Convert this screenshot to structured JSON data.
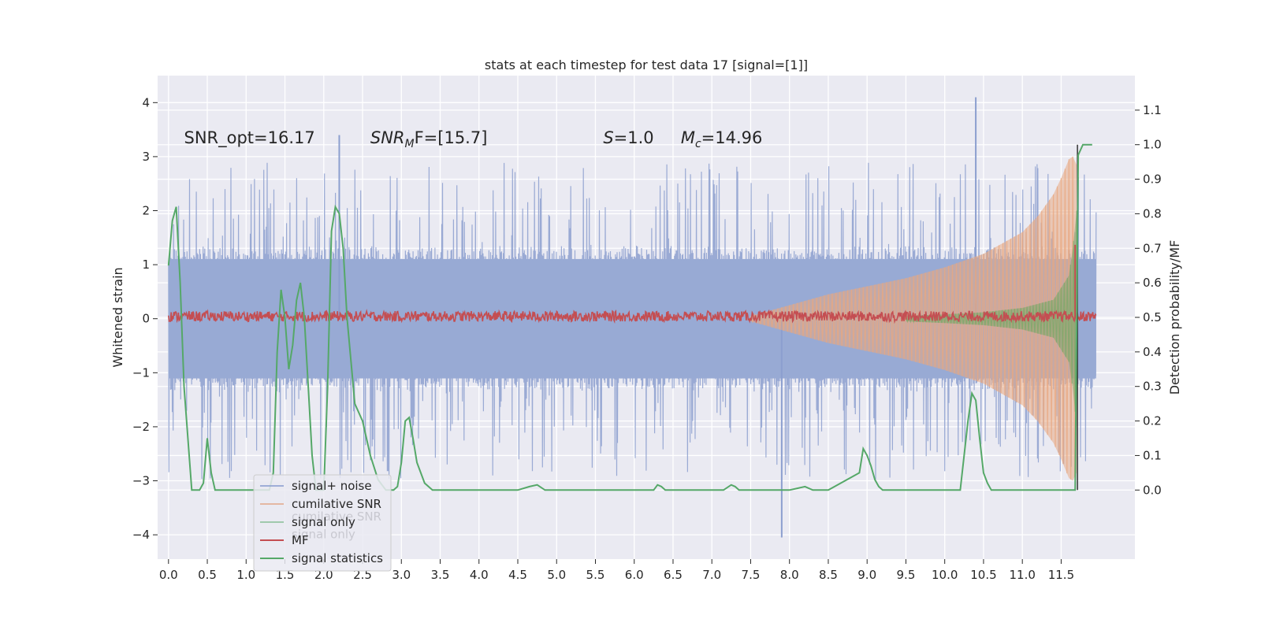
{
  "chart_data": {
    "type": "line",
    "title": "stats at each timestep for test data 17 [signal=[1]]",
    "xlabel": "",
    "ylabel": "Whitened strain",
    "y2label": "Detection probability/MF",
    "xlim": [
      -0.14,
      12.45
    ],
    "ylim": [
      -4.45,
      4.5
    ],
    "y2lim": [
      -0.2,
      1.2
    ],
    "xticks": [
      0.0,
      0.5,
      1.0,
      1.5,
      2.0,
      2.5,
      3.0,
      3.5,
      4.0,
      4.5,
      5.0,
      5.5,
      6.0,
      6.5,
      7.0,
      7.5,
      8.0,
      8.5,
      9.0,
      9.5,
      10.0,
      10.5,
      11.0,
      11.5
    ],
    "xtick_labels": [
      "0.0",
      "0.5",
      "1.0",
      "1.5",
      "2.0",
      "2.5",
      "3.0",
      "3.5",
      "4.0",
      "4.5",
      "5.0",
      "5.5",
      "6.0",
      "6.5",
      "7.0",
      "7.5",
      "8.0",
      "8.5",
      "9.0",
      "9.5",
      "10.0",
      "10.5",
      "11.0",
      "11.5"
    ],
    "yticks": [
      -4,
      -3,
      -2,
      -1,
      0,
      1,
      2,
      3,
      4
    ],
    "ytick_labels": [
      "−4",
      "−3",
      "−2",
      "−1",
      "0",
      "1",
      "2",
      "3",
      "4"
    ],
    "y2ticks": [
      0.0,
      0.1,
      0.2,
      0.3,
      0.4,
      0.5,
      0.6,
      0.7,
      0.8,
      0.9,
      1.0,
      1.1
    ],
    "y2tick_labels": [
      "0.0",
      "0.1",
      "0.2",
      "0.3",
      "0.4",
      "0.5",
      "0.6",
      "0.7",
      "0.8",
      "0.9",
      "1.0",
      "1.1"
    ],
    "grid": true,
    "legend_position": "lower-left",
    "annotations": [
      {
        "id": "snr-opt",
        "text": "SNR_opt=16.17",
        "x": 0.2,
        "y": 3.25
      },
      {
        "id": "snr-mf",
        "text": "SNR_MF=[15.7]",
        "x": 2.6,
        "y": 3.25
      },
      {
        "id": "s-value",
        "text": "S=1.0",
        "x": 5.6,
        "y": 3.25
      },
      {
        "id": "mc-value",
        "text": "M_c=14.96",
        "x": 6.6,
        "y": 3.25
      }
    ],
    "legend": [
      {
        "name": "signal+ noise",
        "color": "#8c9fcf",
        "alpha": 0.8
      },
      {
        "name": "cumilative SNR",
        "color": "#dd8452",
        "alpha": 0.5
      },
      {
        "name": "signal only",
        "color": "#55a868",
        "alpha": 0.5
      },
      {
        "name": "MF",
        "color": "#c44e52",
        "alpha": 1
      },
      {
        "name": "signal statistics",
        "color": "#55a868",
        "alpha": 1
      }
    ],
    "legend_ghost": [
      {
        "name": "cumilative SNR",
        "y": -3.66
      },
      {
        "name": "signal only",
        "y": -3.99
      }
    ],
    "noise": {
      "x_start": 0.0,
      "x_end": 11.95,
      "band": 1.3,
      "extreme_max": 4.1,
      "extreme_min": -4.05
    },
    "cumulative_snr_envelope": {
      "x": [
        7.5,
        8.0,
        8.5,
        9.0,
        9.5,
        10.0,
        10.5,
        11.0,
        11.2,
        11.4,
        11.5,
        11.6,
        11.65,
        11.7
      ],
      "upper": [
        0.05,
        0.25,
        0.45,
        0.6,
        0.75,
        0.95,
        1.2,
        1.6,
        1.9,
        2.3,
        2.6,
        2.95,
        3.0,
        2.85
      ]
    },
    "signal_only_envelope": {
      "x": [
        9.5,
        10.0,
        10.5,
        11.0,
        11.4,
        11.6,
        11.65,
        11.7
      ],
      "upper": [
        0.05,
        0.08,
        0.12,
        0.2,
        0.35,
        0.8,
        1.3,
        2.0
      ]
    },
    "mf": {
      "x_start": 0.0,
      "x_end": 11.95,
      "level": 0.5,
      "spike_x": 11.68,
      "spike_y": 0.71
    },
    "signal_statistics": {
      "x": [
        0.0,
        0.05,
        0.1,
        0.15,
        0.2,
        0.3,
        0.4,
        0.45,
        0.5,
        0.55,
        0.6,
        0.7,
        0.8,
        0.9,
        1.0,
        1.1,
        1.2,
        1.3,
        1.35,
        1.4,
        1.45,
        1.5,
        1.55,
        1.6,
        1.65,
        1.7,
        1.75,
        1.8,
        1.85,
        1.9,
        1.95,
        2.0,
        2.05,
        2.1,
        2.15,
        2.2,
        2.25,
        2.3,
        2.4,
        2.5,
        2.6,
        2.7,
        2.8,
        2.9,
        2.95,
        3.0,
        3.05,
        3.1,
        3.15,
        3.2,
        3.3,
        3.4,
        3.5,
        4.0,
        4.5,
        4.65,
        4.75,
        4.85,
        5.0,
        5.5,
        6.0,
        6.25,
        6.3,
        6.35,
        6.4,
        6.5,
        6.6,
        7.0,
        7.15,
        7.25,
        7.3,
        7.35,
        7.5,
        8.0,
        8.1,
        8.2,
        8.3,
        8.5,
        8.9,
        8.95,
        9.0,
        9.05,
        9.1,
        9.15,
        9.2,
        9.3,
        9.5,
        10.0,
        10.2,
        10.3,
        10.35,
        10.4,
        10.45,
        10.5,
        10.55,
        10.6,
        10.7,
        10.8,
        11.0,
        11.68,
        11.72,
        11.78,
        11.85,
        11.9
      ],
      "y": [
        0.65,
        0.78,
        0.82,
        0.6,
        0.3,
        0.0,
        0.0,
        0.02,
        0.15,
        0.05,
        0.0,
        0.0,
        0.0,
        0.0,
        0.0,
        0.0,
        0.0,
        0.0,
        0.05,
        0.4,
        0.58,
        0.5,
        0.35,
        0.42,
        0.55,
        0.6,
        0.5,
        0.3,
        0.1,
        0.0,
        0.0,
        0.0,
        0.3,
        0.75,
        0.82,
        0.8,
        0.7,
        0.5,
        0.25,
        0.2,
        0.1,
        0.03,
        0.0,
        0.0,
        0.01,
        0.08,
        0.2,
        0.21,
        0.15,
        0.08,
        0.02,
        0.0,
        0.0,
        0.0,
        0.0,
        0.01,
        0.015,
        0.0,
        0.0,
        0.0,
        0.0,
        0.0,
        0.015,
        0.01,
        0.0,
        0.0,
        0.0,
        0.0,
        0.0,
        0.015,
        0.01,
        0.0,
        0.0,
        0.0,
        0.005,
        0.01,
        0.0,
        0.0,
        0.05,
        0.12,
        0.1,
        0.07,
        0.03,
        0.01,
        0.0,
        0.0,
        0.0,
        0.0,
        0.0,
        0.2,
        0.28,
        0.26,
        0.15,
        0.05,
        0.02,
        0.0,
        0.0,
        0.0,
        0.0,
        0.0,
        0.97,
        1.0,
        1.0,
        1.0
      ]
    }
  }
}
